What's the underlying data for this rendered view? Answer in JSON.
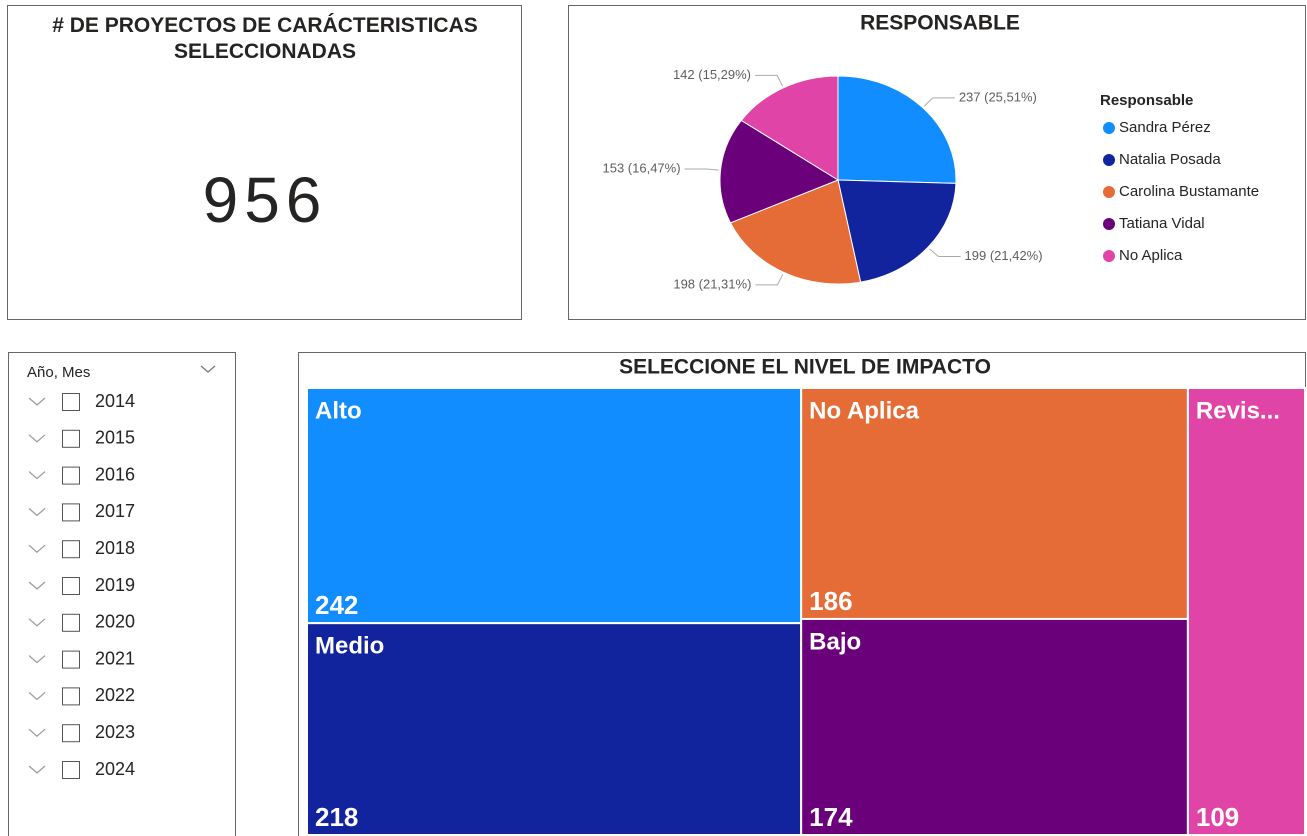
{
  "card": {
    "title": "# DE PROYECTOS DE CARÁCTERISTICAS SELECCIONADAS",
    "value": 956
  },
  "slicer": {
    "title": "Año, Mes",
    "items": [
      "2014",
      "2015",
      "2016",
      "2017",
      "2018",
      "2019",
      "2020",
      "2021",
      "2022",
      "2023",
      "2024"
    ]
  },
  "chart_data": [
    {
      "type": "pie",
      "title": "RESPONSABLE",
      "legend_title": "Responsable",
      "legend": "right",
      "categories": [
        "Sandra Pérez",
        "Natalia Posada",
        "Carolina Bustamante",
        "Tatiana Vidal",
        "No Aplica"
      ],
      "values": [
        237,
        199,
        198,
        153,
        142
      ],
      "value_labels": [
        "237 (25,51%)",
        "199 (21,42%)",
        "198 (21,31%)",
        "153 (16,47%)",
        "142 (15,29%)"
      ],
      "colors": [
        "#118dff",
        "#12239e",
        "#e66c37",
        "#6b007b",
        "#e044a7"
      ]
    },
    {
      "type": "treemap",
      "title": "SELECCIONE EL NIVEL DE IMPACTO",
      "categories": [
        "Alto",
        "Medio",
        "No Aplica",
        "Bajo",
        "Revis..."
      ],
      "values": [
        242,
        218,
        186,
        174,
        109
      ],
      "colors": [
        "#118dff",
        "#12239e",
        "#e66c37",
        "#6b007b",
        "#e044a7"
      ]
    }
  ]
}
